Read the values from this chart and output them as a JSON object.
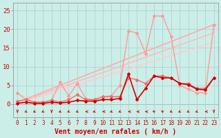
{
  "bg_color": "#cceee8",
  "grid_color": "#aacccc",
  "xlabel": "Vent moyen/en rafales ( km/h )",
  "xlabel_color": "#cc0000",
  "xlabel_fontsize": 7,
  "xtick_fontsize": 5.5,
  "ytick_fontsize": 6.5,
  "ytick_color": "#cc0000",
  "xtick_color": "#cc0000",
  "xlim": [
    -0.5,
    23.5
  ],
  "ylim": [
    -3.5,
    27
  ],
  "yticks": [
    0,
    5,
    10,
    15,
    20,
    25
  ],
  "xticks": [
    0,
    1,
    2,
    3,
    4,
    5,
    6,
    7,
    8,
    9,
    10,
    11,
    12,
    13,
    14,
    15,
    16,
    17,
    18,
    19,
    20,
    21,
    22,
    23
  ],
  "trend1_x": [
    0,
    23
  ],
  "trend1_y": [
    0.5,
    21.2
  ],
  "trend1_color": "#ffaaaa",
  "trend1_lw": 1.2,
  "trend2_x": [
    0,
    23
  ],
  "trend2_y": [
    0.3,
    19.0
  ],
  "trend2_color": "#ffbbbb",
  "trend2_lw": 1.2,
  "trend3_x": [
    0,
    23
  ],
  "trend3_y": [
    0.2,
    16.5
  ],
  "trend3_color": "#ffcccc",
  "trend3_lw": 1.2,
  "pink_x": [
    0,
    1,
    2,
    3,
    4,
    5,
    6,
    7,
    8,
    9,
    10,
    11,
    12,
    13,
    14,
    15,
    16,
    17,
    18,
    19,
    20,
    21,
    22,
    23
  ],
  "pink_y": [
    3.0,
    1.2,
    0.5,
    0.5,
    1.0,
    5.8,
    2.2,
    5.5,
    1.5,
    1.0,
    2.0,
    2.2,
    5.0,
    19.5,
    19.0,
    13.5,
    23.5,
    23.5,
    18.0,
    5.0,
    4.0,
    3.0,
    3.0,
    21.2
  ],
  "pink_color": "#ff9999",
  "pink_lw": 1.0,
  "med_x": [
    0,
    1,
    2,
    3,
    4,
    5,
    6,
    7,
    8,
    9,
    10,
    11,
    12,
    13,
    14,
    15,
    16,
    17,
    18,
    19,
    20,
    21,
    22,
    23
  ],
  "med_y": [
    0.8,
    1.2,
    0.5,
    0.5,
    1.0,
    0.5,
    1.2,
    2.5,
    1.2,
    1.2,
    2.0,
    2.0,
    2.0,
    7.0,
    6.5,
    5.5,
    7.5,
    7.5,
    7.0,
    5.5,
    5.5,
    4.2,
    4.2,
    7.0
  ],
  "med_color": "#ff6666",
  "med_lw": 1.0,
  "dark_x": [
    0,
    1,
    2,
    3,
    4,
    5,
    6,
    7,
    8,
    9,
    10,
    11,
    12,
    13,
    14,
    15,
    16,
    17,
    18,
    19,
    20,
    21,
    22,
    23
  ],
  "dark_y": [
    0.2,
    0.5,
    0.2,
    0.2,
    0.5,
    0.3,
    0.5,
    1.0,
    0.8,
    0.8,
    1.2,
    1.2,
    1.5,
    8.0,
    1.2,
    4.2,
    7.5,
    7.0,
    7.0,
    5.5,
    5.2,
    4.0,
    3.8,
    7.0
  ],
  "dark_color": "#cc0000",
  "dark_lw": 1.2,
  "wind_arrows_x": [
    0,
    1,
    2,
    3,
    4,
    5,
    6,
    7,
    8,
    9,
    10,
    11,
    12,
    13,
    14,
    15,
    16,
    17,
    18,
    19,
    20,
    21,
    22,
    23
  ],
  "wind_arrows_angles": [
    180,
    225,
    225,
    225,
    180,
    225,
    225,
    225,
    270,
    225,
    270,
    225,
    225,
    270,
    270,
    270,
    315,
    315,
    225,
    225,
    225,
    225,
    270,
    180
  ]
}
